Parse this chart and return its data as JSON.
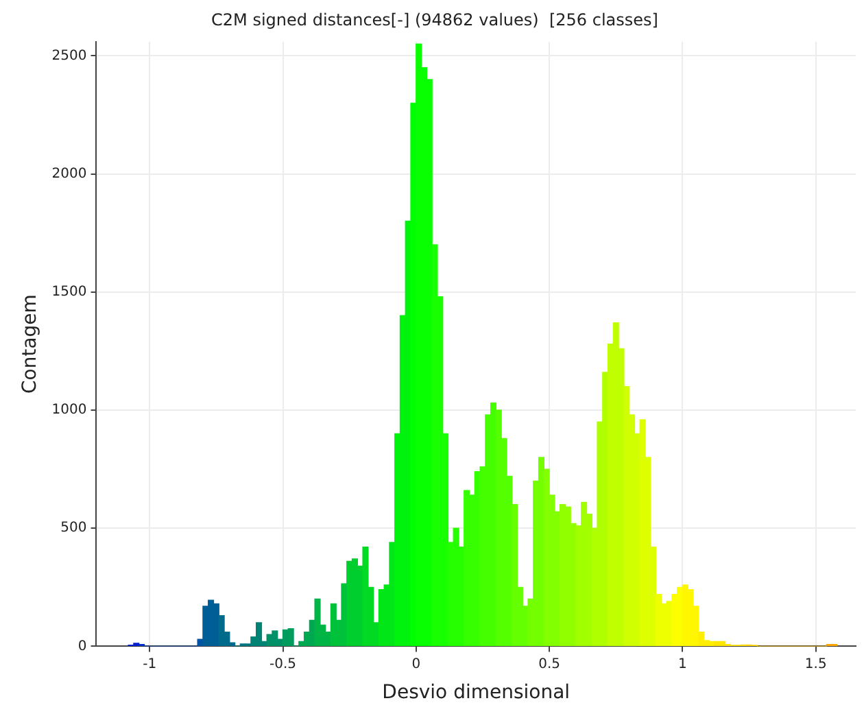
{
  "chart_data": {
    "type": "histogram",
    "title": "C2M signed distances[-] (94862 values)  [256 classes]",
    "xlabel": "Desvio dimensional",
    "ylabel": "Contagem",
    "bins": [
      -1.08,
      -1.06,
      -1.04,
      -1.02,
      -0.82,
      -0.8,
      -0.78,
      -0.76,
      -0.74,
      -0.72,
      -0.7,
      -0.68,
      -0.66,
      -0.64,
      -0.62,
      -0.6,
      -0.58,
      -0.56,
      -0.54,
      -0.52,
      -0.5,
      -0.48,
      -0.46,
      -0.44,
      -0.42,
      -0.4,
      -0.38,
      -0.36,
      -0.34,
      -0.32,
      -0.3,
      -0.28,
      -0.26,
      -0.24,
      -0.22,
      -0.2,
      -0.18,
      -0.16,
      -0.14,
      -0.12,
      -0.1,
      -0.08,
      -0.06,
      -0.04,
      -0.02,
      0,
      0.02,
      0.04,
      0.06,
      0.08,
      0.1,
      0.12,
      0.14,
      0.16,
      0.18,
      0.2,
      0.22,
      0.24,
      0.26,
      0.28,
      0.3,
      0.32,
      0.34,
      0.36,
      0.38,
      0.4,
      0.42,
      0.44,
      0.46,
      0.48,
      0.5,
      0.52,
      0.54,
      0.56,
      0.58,
      0.6,
      0.62,
      0.64,
      0.66,
      0.68,
      0.7,
      0.72,
      0.74,
      0.76,
      0.78,
      0.8,
      0.82,
      0.84,
      0.86,
      0.88,
      0.9,
      0.92,
      0.94,
      0.96,
      0.98,
      1,
      1.02,
      1.04,
      1.06,
      1.08,
      1.1,
      1.12,
      1.14,
      1.16,
      1.18,
      1.2,
      1.22,
      1.24,
      1.26,
      1.28,
      1.54,
      1.56,
      1.58
    ],
    "values": [
      5,
      13,
      8,
      0,
      30,
      170,
      195,
      180,
      130,
      60,
      15,
      0,
      10,
      10,
      40,
      100,
      20,
      50,
      65,
      30,
      70,
      75,
      0,
      20,
      60,
      110,
      200,
      90,
      60,
      180,
      110,
      265,
      360,
      370,
      340,
      420,
      250,
      100,
      240,
      260,
      440,
      900,
      1400,
      1800,
      2300,
      2550,
      2450,
      2400,
      1700,
      1480,
      900,
      440,
      500,
      420,
      660,
      640,
      740,
      760,
      980,
      1030,
      1000,
      880,
      720,
      600,
      250,
      170,
      200,
      700,
      800,
      750,
      640,
      570,
      600,
      590,
      520,
      510,
      610,
      560,
      500,
      950,
      1160,
      1280,
      1370,
      1260,
      1100,
      980,
      900,
      960,
      800,
      420,
      220,
      180,
      190,
      220,
      250,
      260,
      240,
      170,
      60,
      25,
      20,
      20,
      20,
      8,
      4,
      4,
      6,
      6,
      4,
      0,
      8,
      8
    ],
    "colors": [
      "#0020d0",
      "#0020d0",
      "#002cc4",
      "#0039b9",
      "#0052a2",
      "#005e96",
      "#005e96",
      "#005e96",
      "#006a8b",
      "#006a8b",
      "#006a8b",
      "#00777f",
      "#00777f",
      "#00777f",
      "#008374",
      "#008374",
      "#008374",
      "#009068",
      "#009068",
      "#009068",
      "#009c5c",
      "#009c5c",
      "#009c5c",
      "#00a851",
      "#00a851",
      "#00a851",
      "#00b545",
      "#00b545",
      "#00b545",
      "#00c13a",
      "#00c13a",
      "#00c13a",
      "#00ce2e",
      "#00ce2e",
      "#00ce2e",
      "#00da23",
      "#00da23",
      "#00da23",
      "#00e617",
      "#00e617",
      "#00e617",
      "#00f30c",
      "#00f30c",
      "#00f30c",
      "#00ff00",
      "#08ff00",
      "#08ff00",
      "#08ff00",
      "#17ff00",
      "#17ff00",
      "#17ff00",
      "#26ff00",
      "#26ff00",
      "#26ff00",
      "#36ff00",
      "#36ff00",
      "#36ff00",
      "#45ff00",
      "#45ff00",
      "#45ff00",
      "#54ff00",
      "#54ff00",
      "#54ff00",
      "#64ff00",
      "#64ff00",
      "#64ff00",
      "#73ff00",
      "#73ff00",
      "#73ff00",
      "#82ff00",
      "#82ff00",
      "#82ff00",
      "#92ff00",
      "#92ff00",
      "#92ff00",
      "#a1ff00",
      "#a1ff00",
      "#a1ff00",
      "#b0ff00",
      "#b0ff00",
      "#b0ff00",
      "#c0ff00",
      "#c0ff00",
      "#c0ff00",
      "#cfff00",
      "#cfff00",
      "#cfff00",
      "#deff00",
      "#deff00",
      "#deff00",
      "#eeff00",
      "#eeff00",
      "#eeff00",
      "#fdff00",
      "#fdff00",
      "#fff700",
      "#fff700",
      "#fff700",
      "#ffee00",
      "#ffee00",
      "#ffee00",
      "#ffe500",
      "#ffe500",
      "#ffe500",
      "#ffdc00",
      "#ffdc00",
      "#ffdc00",
      "#ffd300",
      "#ffd300",
      "#ffca00",
      "#ffa600",
      "#ffa600"
    ],
    "xlim": [
      -1.2,
      1.65
    ],
    "ylim": [
      0,
      2560
    ],
    "xticks": [
      -1,
      -0.5,
      0,
      0.5,
      1,
      1.5
    ],
    "yticks": [
      0,
      500,
      1000,
      1500,
      2000,
      2500
    ],
    "grid": true,
    "legend": false
  }
}
